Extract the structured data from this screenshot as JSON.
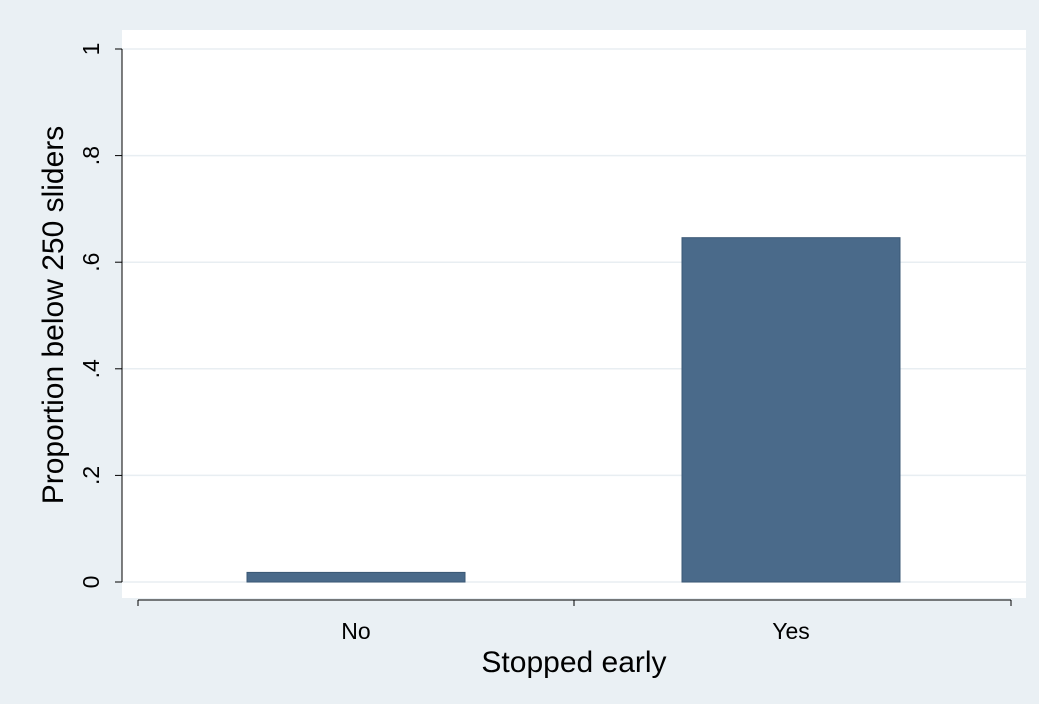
{
  "colors": {
    "outer_background": "#eaf0f4",
    "plot_background": "#ffffff",
    "gridline": "#e8eef2",
    "bar_fill": "#4a6a8a",
    "bar_stroke": "#3b5875",
    "axis": "#000000"
  },
  "chart_data": {
    "type": "bar",
    "categories": [
      "No",
      "Yes"
    ],
    "values": [
      0.018,
      0.646
    ],
    "title": "",
    "xlabel": "Stopped early",
    "ylabel": "Proportion below 250 sliders",
    "ylim": [
      0,
      1
    ],
    "yticks": [
      0,
      0.2,
      0.4,
      0.6,
      0.8,
      1
    ],
    "ytick_labels": [
      "0",
      ".2",
      ".4",
      ".6",
      ".8",
      "1"
    ],
    "grid": true,
    "legend": "none"
  }
}
